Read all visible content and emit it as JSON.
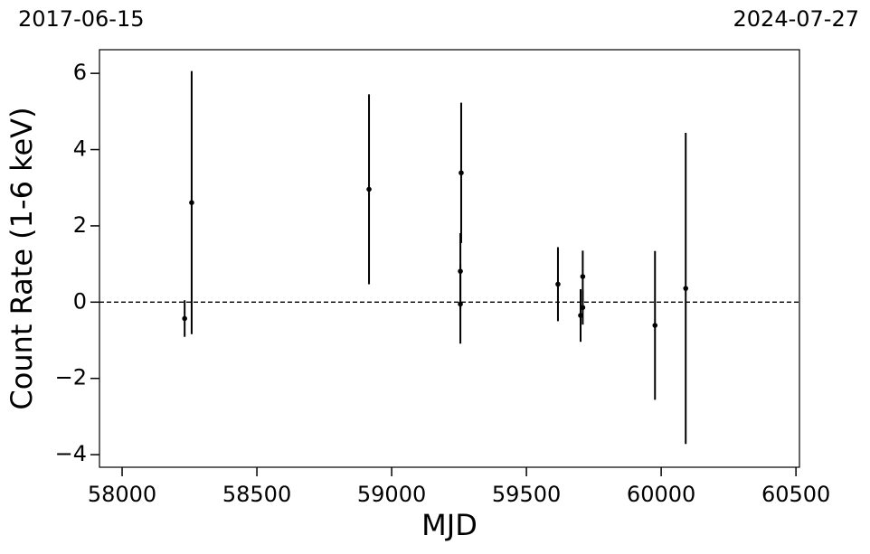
{
  "chart_data": {
    "type": "errorbar",
    "xlabel": "MJD",
    "ylabel": "Count Rate (1-6 keV)",
    "top_labels": [
      "2017-06-15",
      "2024-07-27"
    ],
    "x": [
      58232,
      58258,
      58916,
      59258,
      59255,
      59255,
      59617,
      59709,
      59709,
      59701,
      59977,
      60091
    ],
    "values": [
      -0.43,
      2.61,
      2.96,
      3.39,
      0.81,
      -0.05,
      0.47,
      0.67,
      -0.14,
      -0.35,
      -0.61,
      0.36
    ],
    "errors": [
      0.48,
      3.45,
      2.49,
      1.84,
      1.0,
      1.04,
      0.97,
      0.68,
      0.45,
      0.69,
      1.95,
      4.08
    ],
    "color": "#000000",
    "hline": 0,
    "xlim": [
      57916,
      60513
    ],
    "ylim": [
      -4.33,
      6.62
    ],
    "xticks": [
      58000,
      58500,
      59000,
      59500,
      60000,
      60500
    ],
    "yticks": [
      {
        "value": -4,
        "label": "−4"
      },
      {
        "value": -2,
        "label": "−2"
      },
      0,
      2,
      4,
      6
    ]
  }
}
